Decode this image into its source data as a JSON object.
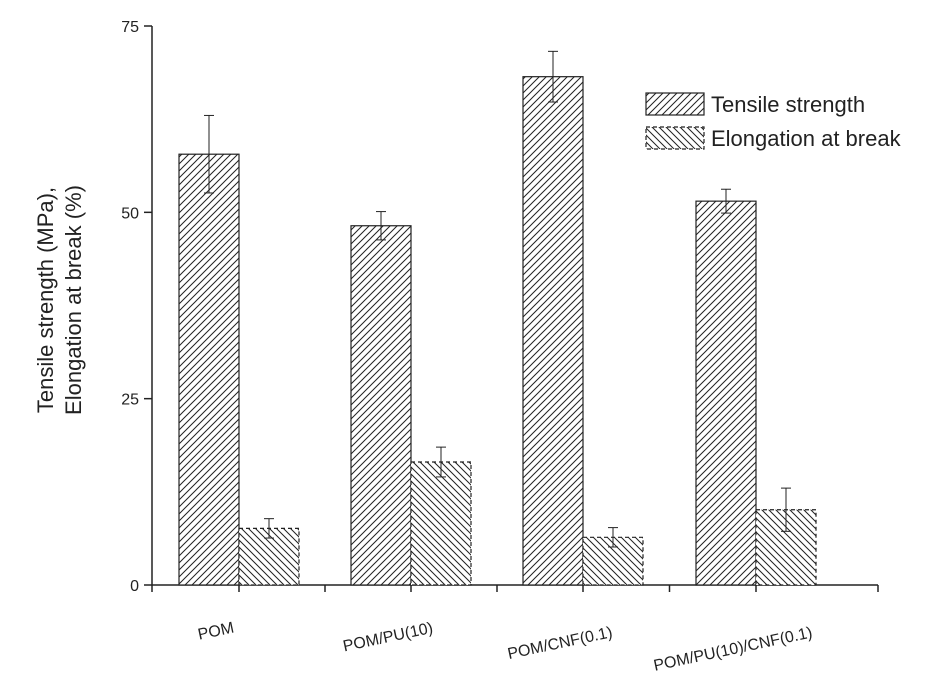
{
  "chart_data": {
    "type": "bar",
    "title": "",
    "xlabel": "",
    "ylabel_lines": [
      "Tensile strength (MPa),",
      "Elongation at break (%)"
    ],
    "categories": [
      "POM",
      "POM/PU(10)",
      "POM/CNF(0.1)",
      "POM/PU(10)/CNF(0.1)"
    ],
    "yticks": [
      0,
      25,
      50,
      75
    ],
    "ylim": [
      0,
      75
    ],
    "grid": false,
    "legend_position": "top-right",
    "series": [
      {
        "name": "Tensile strength",
        "values": [
          57.8,
          48.2,
          68.2,
          51.5
        ],
        "errors": [
          5.2,
          1.9,
          3.4,
          1.6
        ],
        "pattern": "forward-hatch",
        "border": "solid"
      },
      {
        "name": "Elongation at break",
        "values": [
          7.6,
          16.5,
          6.4,
          10.1
        ],
        "errors": [
          1.3,
          2.0,
          1.3,
          2.9
        ],
        "pattern": "backward-hatch",
        "border": "dashed"
      }
    ],
    "colors": {
      "line": "#222222",
      "background": "#ffffff"
    }
  }
}
